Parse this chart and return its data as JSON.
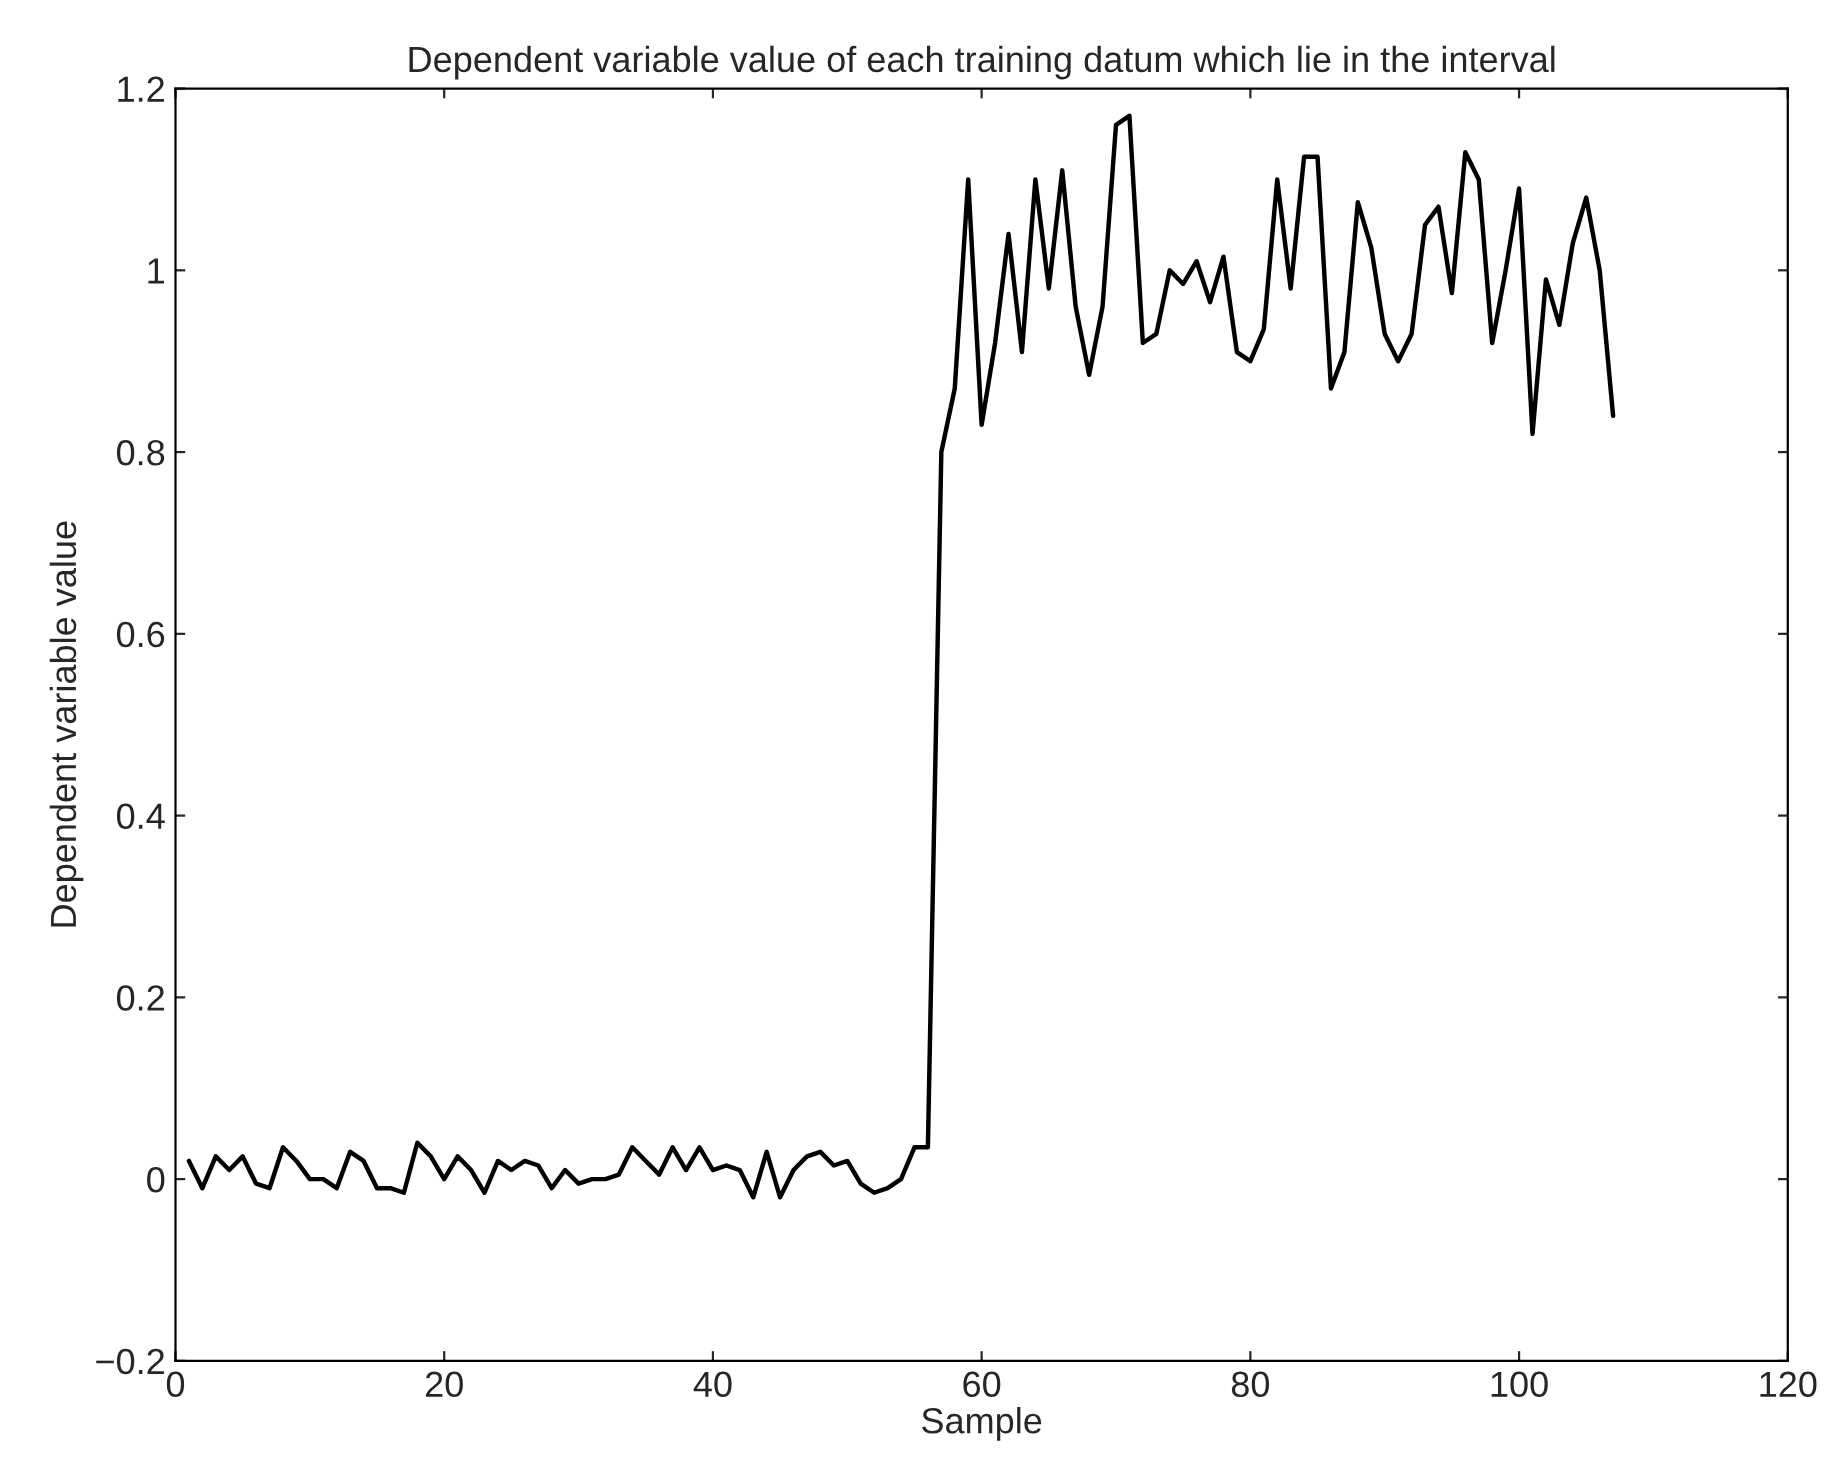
{
  "chart_data": {
    "type": "line",
    "title": "Dependent variable value of each training datum which lie in the interval",
    "xlabel": "Sample",
    "ylabel": "Dependent variable value",
    "x": [
      1,
      2,
      3,
      4,
      5,
      6,
      7,
      8,
      9,
      10,
      11,
      12,
      13,
      14,
      15,
      16,
      17,
      18,
      19,
      20,
      21,
      22,
      23,
      24,
      25,
      26,
      27,
      28,
      29,
      30,
      31,
      32,
      33,
      34,
      35,
      36,
      37,
      38,
      39,
      40,
      41,
      42,
      43,
      44,
      45,
      46,
      47,
      48,
      49,
      50,
      51,
      52,
      53,
      54,
      55,
      56,
      57,
      58,
      59,
      60,
      61,
      62,
      63,
      64,
      65,
      66,
      67,
      68,
      69,
      70,
      71,
      72,
      73,
      74,
      75,
      76,
      77,
      78,
      79,
      80,
      81,
      82,
      83,
      84,
      85,
      86,
      87,
      88,
      89,
      90,
      91,
      92,
      93,
      94,
      95,
      96,
      97,
      98,
      99,
      100,
      101,
      102,
      103,
      104,
      105,
      106,
      107
    ],
    "series": [
      {
        "color": "#000000",
        "values": [
          0.02,
          -0.01,
          0.025,
          0.01,
          0.025,
          -0.005,
          -0.01,
          0.035,
          0.02,
          0.0,
          0.0,
          -0.01,
          0.03,
          0.02,
          -0.01,
          -0.01,
          -0.015,
          0.04,
          0.025,
          0.0,
          0.025,
          0.01,
          -0.015,
          0.02,
          0.01,
          0.02,
          0.015,
          -0.01,
          0.01,
          -0.005,
          0.0,
          0.0,
          0.005,
          0.035,
          0.02,
          0.005,
          0.035,
          0.01,
          0.035,
          0.01,
          0.015,
          0.01,
          -0.02,
          0.03,
          -0.02,
          0.01,
          0.025,
          0.03,
          0.015,
          0.02,
          -0.005,
          -0.015,
          -0.01,
          0.0,
          0.035,
          0.035,
          0.8,
          0.87,
          1.1,
          0.83,
          0.92,
          1.04,
          0.91,
          1.1,
          0.98,
          1.11,
          0.96,
          0.885,
          0.96,
          1.16,
          1.17,
          0.92,
          0.93,
          1.0,
          0.985,
          1.01,
          0.965,
          1.015,
          0.91,
          0.9,
          0.935,
          1.1,
          0.98,
          1.125,
          1.125,
          0.87,
          0.91,
          1.075,
          1.025,
          0.93,
          0.9,
          0.93,
          1.05,
          1.07,
          0.975,
          1.13,
          1.1,
          0.92,
          1.0,
          1.09,
          0.82,
          0.99,
          0.94,
          1.03,
          1.08,
          1.0,
          0.84
        ]
      }
    ],
    "xlim": [
      0,
      120
    ],
    "xticks": [
      0,
      20,
      40,
      60,
      80,
      100,
      120
    ],
    "ylim": [
      -0.2,
      1.2
    ],
    "yticks": [
      {
        "value": -0.2,
        "label": "−0.2"
      },
      0,
      0.2,
      0.4,
      0.6,
      0.8,
      1,
      1.2
    ],
    "grid": false,
    "line_style": "solid",
    "marker": "none"
  }
}
